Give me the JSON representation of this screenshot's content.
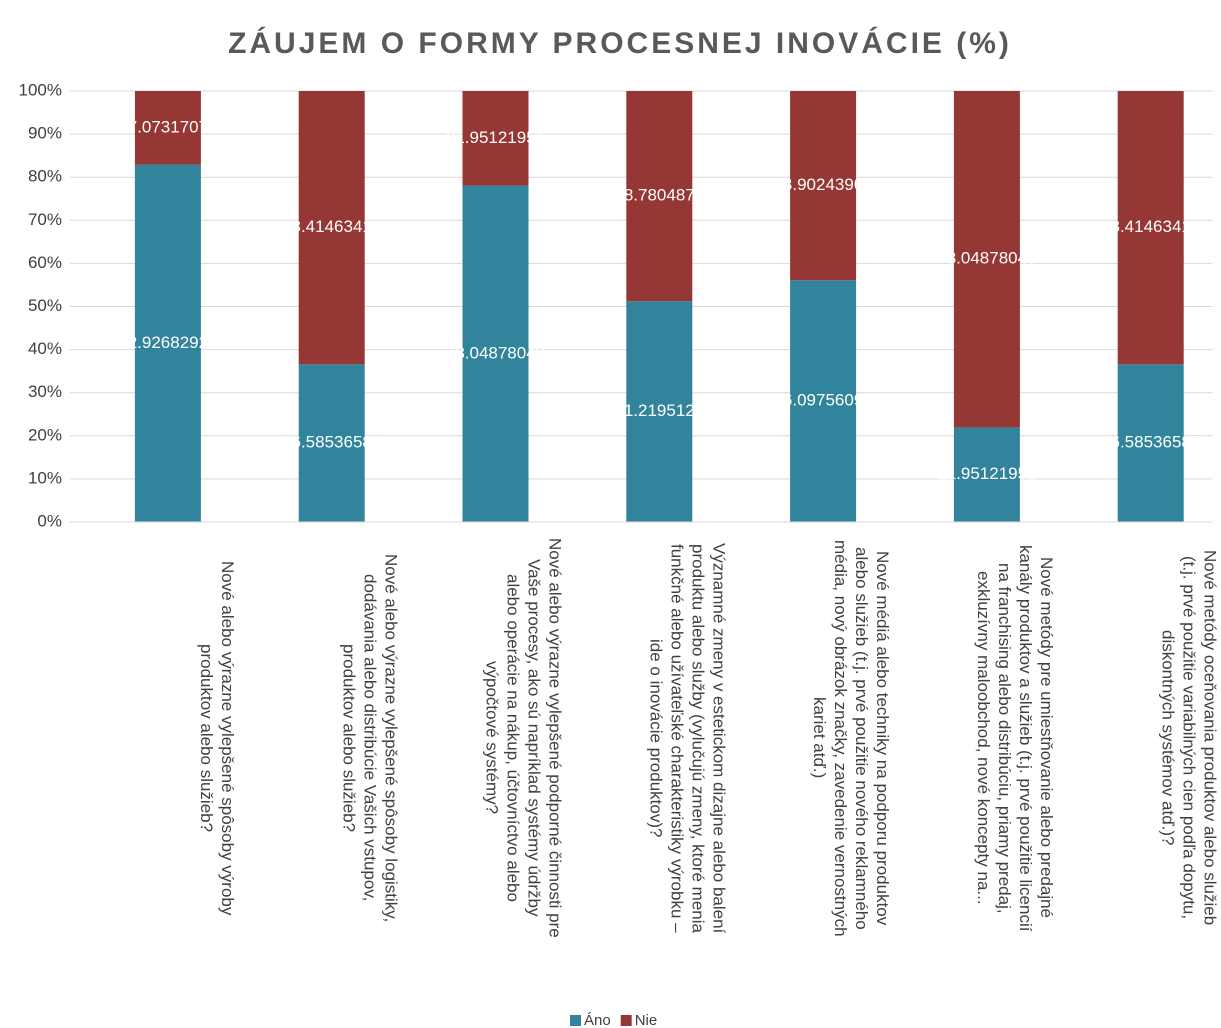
{
  "chart_data": {
    "type": "stacked_bar",
    "title": "ZÁUJEM O FORMY PROCESNEJ INOVÁCIE (%)",
    "categories": [
      "Nové alebo výrazne vylepšené spôsoby výroby produktov alebo služieb?",
      "Nové alebo výrazne vylepšené spôsoby logistiky, dodávania alebo distribúcie Vašich vstupov, produktov alebo služieb?",
      "Nové alebo výrazne vylepšené podporné činnosti pre Vaše procesy, ako sú napríklad systémy údržby alebo operácie na nákup, účtovníctvo alebo výpočtové systémy?",
      "Významné zmeny v estetickom dizajne alebo balení produktu alebo služby (vylučujú zmeny, ktoré menia funkčné alebo užívateľské charakteristiky výrobku – ide o inovácie produktov)?",
      "Nové médiá alebo techniky na podporu produktov alebo služieb (t.j. prvé použitie nového reklamného média, nový obrázok značky, zavedenie vernostných kariet atď.)",
      "Nové metódy pre umiestňovanie alebo predajné kanály produktov a služieb (t.j. prvé použitie licencií na franchising alebo distribúciu, priamy predaj, exkluzívny maloobchod, nové koncepty na...",
      "Nové metódy oceňovania produktov alebo služieb (t.j. prvé použitie variabilných cien podľa dopytu, diskontných systémov atď.)?"
    ],
    "series": [
      {
        "name": "Áno",
        "color": "#31849b",
        "values": [
          82.92682927,
          36.58536585,
          78.04878049,
          51.2195122,
          56.09756098,
          21.95121951,
          36.58536585
        ]
      },
      {
        "name": "Nie",
        "color": "#953735",
        "values": [
          17.07317073,
          63.41463415,
          21.95121951,
          48.7804878,
          43.90243902,
          78.04878049,
          63.41463415
        ]
      }
    ],
    "ylim": [
      0,
      100
    ],
    "yticks": [
      {
        "value": 0,
        "label": "0%"
      },
      {
        "value": 10,
        "label": "10%"
      },
      {
        "value": 20,
        "label": "20%"
      },
      {
        "value": 30,
        "label": "30%"
      },
      {
        "value": 40,
        "label": "40%"
      },
      {
        "value": 50,
        "label": "50%"
      },
      {
        "value": 60,
        "label": "60%"
      },
      {
        "value": 70,
        "label": "70%"
      },
      {
        "value": 80,
        "label": "80%"
      },
      {
        "value": 90,
        "label": "90%"
      },
      {
        "value": 100,
        "label": "100%"
      }
    ],
    "legend": "bottom"
  }
}
